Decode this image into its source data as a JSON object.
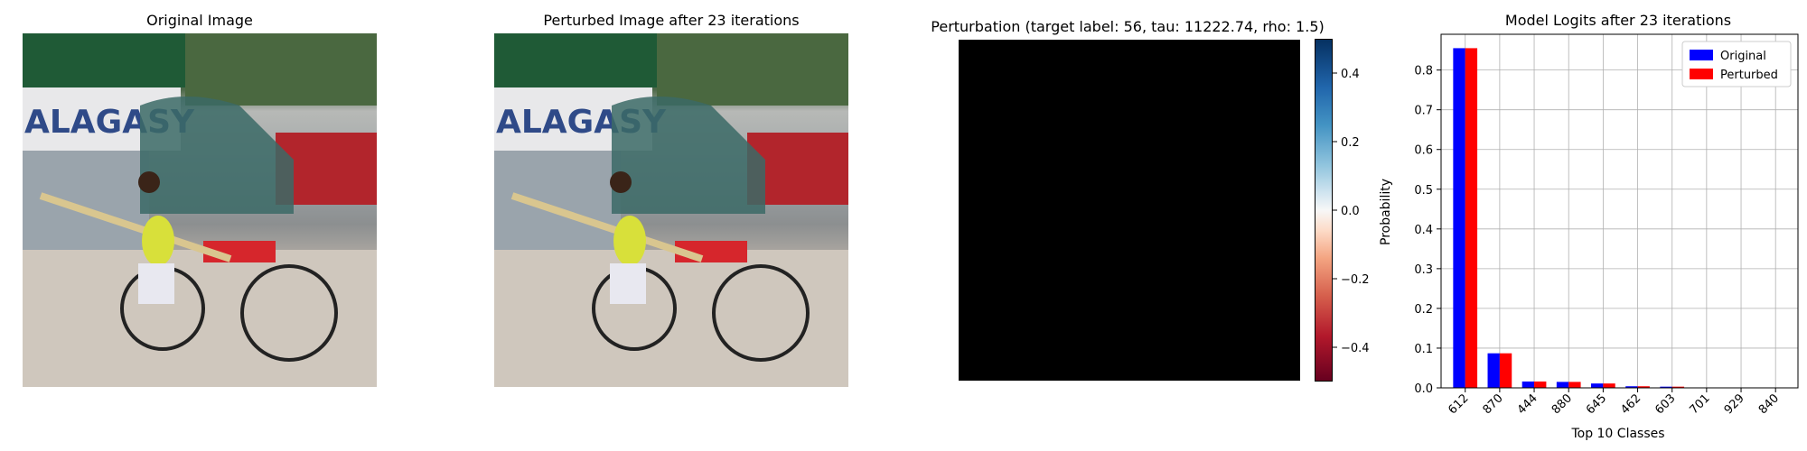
{
  "panels": {
    "original_title": "Original Image",
    "perturbed_title": "Perturbed Image after 23 iterations",
    "perturbation_title": "Perturbation (target label: 56, tau: 11222.74, rho: 1.5)",
    "logits_title": "Model Logits after 23 iterations"
  },
  "photo": {
    "sign_text": "ALAGASY"
  },
  "colorbar": {
    "ticks": [
      0.4,
      0.2,
      0.0,
      -0.2,
      -0.4
    ],
    "tick_labels": [
      "0.4",
      "0.2",
      "0.0",
      "−0.2",
      "−0.4"
    ],
    "range": [
      -0.5,
      0.5
    ],
    "colormap": "RdBu"
  },
  "colors": {
    "original": "#0000ff",
    "perturbed": "#ff0000"
  },
  "chart_data": {
    "type": "bar",
    "title": "Model Logits after 23 iterations",
    "xlabel": "Top 10 Classes",
    "ylabel": "Probability",
    "categories": [
      "612",
      "870",
      "444",
      "880",
      "645",
      "462",
      "603",
      "701",
      "929",
      "840"
    ],
    "series": [
      {
        "name": "Original",
        "values": [
          0.855,
          0.087,
          0.016,
          0.015,
          0.011,
          0.004,
          0.003,
          0.001,
          0.001,
          0.001
        ]
      },
      {
        "name": "Perturbed",
        "values": [
          0.855,
          0.087,
          0.016,
          0.015,
          0.011,
          0.004,
          0.003,
          0.001,
          0.001,
          0.001
        ]
      }
    ],
    "ylim": [
      0,
      0.89
    ],
    "yticks": [
      0.0,
      0.1,
      0.2,
      0.3,
      0.4,
      0.5,
      0.6,
      0.7,
      0.8
    ],
    "ytick_labels": [
      "0.0",
      "0.1",
      "0.2",
      "0.3",
      "0.4",
      "0.5",
      "0.6",
      "0.7",
      "0.8"
    ],
    "grid": true,
    "legend": "top-right"
  }
}
